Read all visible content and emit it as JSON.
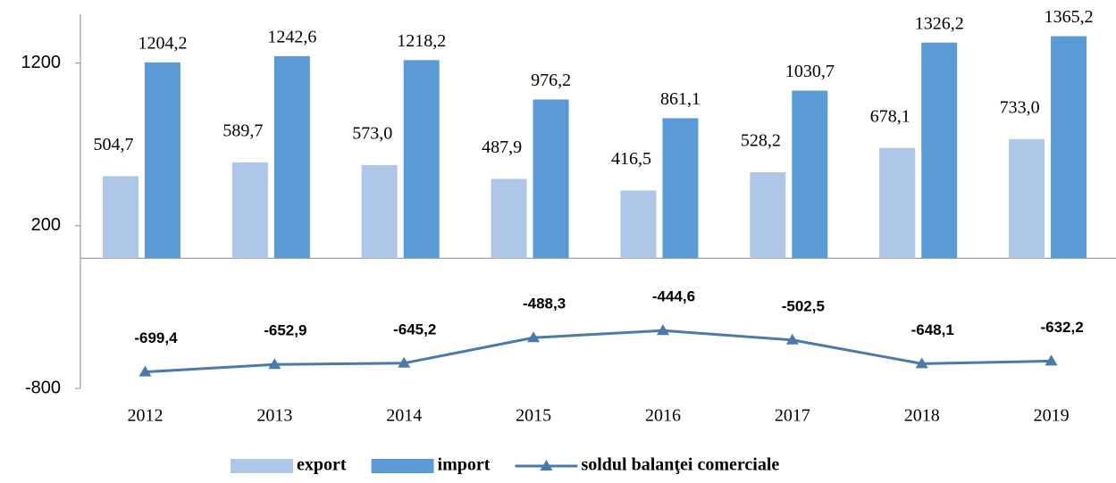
{
  "chart_data": {
    "type": "bar",
    "categories": [
      "2012",
      "2013",
      "2014",
      "2015",
      "2016",
      "2017",
      "2018",
      "2019"
    ],
    "series": [
      {
        "name": "export",
        "type": "bar",
        "color": "#aec6e8",
        "values": [
          504.7,
          589.7,
          573.0,
          487.9,
          416.5,
          528.2,
          678.1,
          733.0
        ],
        "value_labels": [
          "504,7",
          "589,7",
          "573,0",
          "487,9",
          "416,5",
          "528,2",
          "678,1",
          "733,0"
        ]
      },
      {
        "name": "import",
        "type": "bar",
        "color": "#5b9bd5",
        "values": [
          1204.2,
          1242.6,
          1218.2,
          976.2,
          861.1,
          1030.7,
          1326.2,
          1365.2
        ],
        "value_labels": [
          "1204,2",
          "1242,6",
          "1218,2",
          "976,2",
          "861,1",
          "1030,7",
          "1326,2",
          "1365,2"
        ]
      },
      {
        "name": "soldul balanţei comerciale",
        "type": "line",
        "color": "#4a7aab",
        "values": [
          -699.4,
          -652.9,
          -645.2,
          -488.3,
          -444.6,
          -502.5,
          -648.1,
          -632.2
        ],
        "value_labels": [
          "-699,4",
          "-652,9",
          "-645,2",
          "-488,3",
          "-444,6",
          "-502,5",
          "-648,1",
          "-632,2"
        ]
      }
    ],
    "ylim": [
      -800,
      1500
    ],
    "yticks": [
      -800,
      200,
      1200
    ],
    "legend": "bottom"
  }
}
